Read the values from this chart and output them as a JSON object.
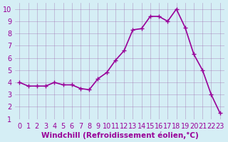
{
  "x": [
    0,
    1,
    2,
    3,
    4,
    5,
    6,
    7,
    8,
    9,
    10,
    11,
    12,
    13,
    14,
    15,
    16,
    17,
    18,
    19,
    20,
    21,
    22,
    23
  ],
  "y": [
    4.0,
    3.7,
    3.7,
    3.7,
    4.0,
    3.8,
    3.8,
    3.5,
    3.4,
    4.3,
    4.8,
    5.8,
    6.6,
    8.3,
    8.4,
    9.4,
    9.4,
    9.0,
    10.0,
    8.5,
    6.3,
    5.0,
    3.0,
    1.5
  ],
  "line_color": "#990099",
  "marker": "+",
  "marker_size": 5,
  "linewidth": 1.2,
  "xlabel": "Windchill (Refroidissement éolien,°C)",
  "xlabel_fontsize": 7.5,
  "xlim": [
    -0.5,
    23.5
  ],
  "ylim": [
    1,
    10.5
  ],
  "xticks": [
    0,
    1,
    2,
    3,
    4,
    5,
    6,
    7,
    8,
    9,
    10,
    11,
    12,
    13,
    14,
    15,
    16,
    17,
    18,
    19,
    20,
    21,
    22,
    23
  ],
  "yticks": [
    1,
    2,
    3,
    4,
    5,
    6,
    7,
    8,
    9,
    10
  ],
  "grid_color": "#9966aa",
  "grid_alpha": 0.5,
  "bg_color": "#d5eef5",
  "tick_fontsize": 7
}
